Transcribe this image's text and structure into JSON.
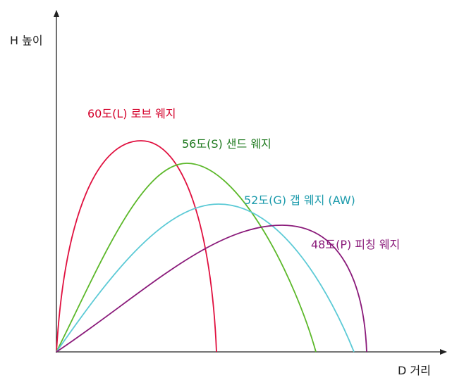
{
  "axes": {
    "y_label": "H 높이",
    "x_label": "D 거리",
    "color": "#222222"
  },
  "curves": [
    {
      "label": "60도(L) 로브 웨지",
      "curve_color": "#e0103f",
      "label_color": "#d4002a"
    },
    {
      "label": "56도(S) 샌드 웨지",
      "curve_color": "#5cb82a",
      "label_color": "#1f7a1f"
    },
    {
      "label": "52도(G) 갭 웨지 (AW)",
      "curve_color": "#5ccad6",
      "label_color": "#1a9aab"
    },
    {
      "label": "48도(P) 피칭 웨지",
      "curve_color": "#8a1a7a",
      "label_color": "#8a1a7a"
    }
  ]
}
